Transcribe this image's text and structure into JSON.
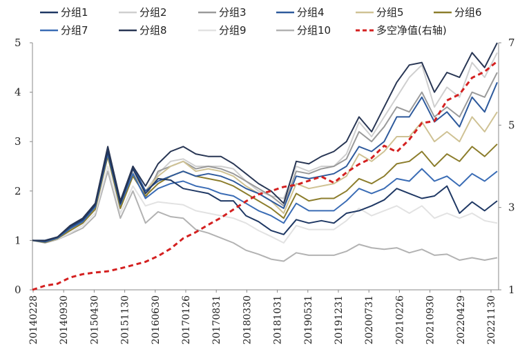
{
  "chart_data": {
    "type": "line",
    "title": "",
    "xlabel": "",
    "ylabel": "",
    "y_left_range": [
      0,
      5
    ],
    "y_left_ticks": [
      "0",
      "1",
      "2",
      "3",
      "4",
      "5"
    ],
    "y_right_range": [
      1,
      7
    ],
    "y_right_ticks": [
      "1",
      "3",
      "5",
      "7"
    ],
    "x_tick_labels": [
      "20140228",
      "20140930",
      "20150430",
      "20151130",
      "20160630",
      "20170126",
      "20170831",
      "20180330",
      "20181031",
      "20190531",
      "20191231",
      "20200731",
      "20210226",
      "20210930",
      "20220429",
      "20221130"
    ],
    "legend_position": "top",
    "colors": {
      "g1": "#1f3864",
      "g2": "#cfcfcf",
      "g3": "#9a9a9a",
      "g4": "#2e5a9c",
      "g5": "#cfc294",
      "g6": "#8c7d2c",
      "g7": "#3a6cb5",
      "g8": "#283654",
      "g9": "#e2e2e2",
      "g10": "#b2b2b2",
      "ls": "#d42020"
    },
    "series": [
      {
        "key": "g1",
        "name": "分组1",
        "axis": "left",
        "style": "solid",
        "values": [
          1.0,
          1.0,
          1.07,
          1.28,
          1.42,
          1.72,
          2.8,
          1.75,
          2.45,
          1.95,
          2.25,
          2.22,
          2.05,
          2.0,
          1.95,
          1.8,
          1.8,
          1.5,
          1.38,
          1.2,
          1.12,
          1.42,
          1.35,
          1.4,
          1.35,
          1.55,
          1.6,
          1.7,
          1.82,
          2.05,
          1.95,
          1.85,
          1.9,
          2.1,
          1.55,
          1.78,
          1.6,
          1.8
        ]
      },
      {
        "key": "g2",
        "name": "分组2",
        "axis": "left",
        "style": "solid",
        "values": [
          1.0,
          0.99,
          1.06,
          1.26,
          1.4,
          1.72,
          2.8,
          1.7,
          2.4,
          2.0,
          2.35,
          2.6,
          2.65,
          2.5,
          2.5,
          2.5,
          2.45,
          2.2,
          2.0,
          1.9,
          1.85,
          2.5,
          2.4,
          2.5,
          2.5,
          2.75,
          3.4,
          3.1,
          3.5,
          3.9,
          4.3,
          4.55,
          3.7,
          4.1,
          3.9,
          4.6,
          4.3,
          4.8
        ]
      },
      {
        "key": "g3",
        "name": "分组3",
        "axis": "left",
        "style": "solid",
        "values": [
          1.0,
          0.97,
          1.05,
          1.2,
          1.35,
          1.65,
          2.75,
          1.65,
          2.35,
          1.85,
          2.4,
          2.5,
          2.6,
          2.45,
          2.5,
          2.45,
          2.35,
          2.2,
          2.05,
          1.9,
          1.7,
          2.4,
          2.35,
          2.45,
          2.5,
          2.65,
          3.2,
          3.0,
          3.3,
          3.7,
          3.6,
          4.0,
          3.5,
          3.7,
          3.5,
          4.0,
          3.9,
          4.4
        ]
      },
      {
        "key": "g4",
        "name": "分组4",
        "axis": "left",
        "style": "solid",
        "values": [
          1.0,
          0.98,
          1.06,
          1.25,
          1.4,
          1.7,
          2.85,
          1.75,
          2.5,
          2.0,
          2.2,
          2.3,
          2.4,
          2.3,
          2.35,
          2.3,
          2.2,
          2.05,
          1.95,
          1.8,
          1.65,
          2.3,
          2.25,
          2.3,
          2.35,
          2.5,
          2.9,
          2.8,
          3.0,
          3.5,
          3.5,
          3.9,
          3.4,
          3.6,
          3.3,
          3.9,
          3.6,
          4.2
        ]
      },
      {
        "key": "g5",
        "name": "分组5",
        "axis": "left",
        "style": "solid",
        "values": [
          1.0,
          0.97,
          1.04,
          1.22,
          1.38,
          1.66,
          2.75,
          1.7,
          2.35,
          2.0,
          2.3,
          2.5,
          2.6,
          2.4,
          2.45,
          2.4,
          2.3,
          2.1,
          1.95,
          1.8,
          1.55,
          2.15,
          2.05,
          2.1,
          2.15,
          2.3,
          2.75,
          2.6,
          2.8,
          3.1,
          3.1,
          3.4,
          3.0,
          3.2,
          3.0,
          3.5,
          3.2,
          3.6
        ]
      },
      {
        "key": "g6",
        "name": "分组6",
        "axis": "left",
        "style": "solid",
        "values": [
          1.0,
          0.96,
          1.04,
          1.2,
          1.35,
          1.63,
          2.7,
          1.65,
          2.3,
          1.9,
          2.15,
          2.3,
          2.4,
          2.3,
          2.25,
          2.2,
          2.1,
          1.95,
          1.8,
          1.65,
          1.45,
          1.95,
          1.8,
          1.85,
          1.85,
          2.0,
          2.25,
          2.15,
          2.3,
          2.55,
          2.6,
          2.8,
          2.5,
          2.75,
          2.6,
          2.9,
          2.7,
          2.95
        ]
      },
      {
        "key": "g7",
        "name": "分组7",
        "axis": "left",
        "style": "solid",
        "values": [
          1.0,
          0.97,
          1.05,
          1.24,
          1.38,
          1.68,
          2.75,
          1.72,
          2.35,
          1.85,
          2.05,
          2.15,
          2.2,
          2.1,
          2.05,
          1.95,
          1.9,
          1.75,
          1.6,
          1.5,
          1.35,
          1.75,
          1.6,
          1.6,
          1.6,
          1.8,
          2.05,
          1.95,
          2.05,
          2.25,
          2.2,
          2.45,
          2.2,
          2.3,
          2.1,
          2.35,
          2.2,
          2.4
        ]
      },
      {
        "key": "g8",
        "name": "分组8",
        "axis": "left",
        "style": "solid",
        "values": [
          1.0,
          0.99,
          1.07,
          1.3,
          1.45,
          1.75,
          2.9,
          1.8,
          2.5,
          2.1,
          2.55,
          2.8,
          2.9,
          2.75,
          2.7,
          2.7,
          2.55,
          2.35,
          2.15,
          2.0,
          1.75,
          2.6,
          2.55,
          2.7,
          2.8,
          3.0,
          3.5,
          3.2,
          3.7,
          4.2,
          4.55,
          4.6,
          4.0,
          4.4,
          4.3,
          4.8,
          4.5,
          5.0
        ]
      },
      {
        "key": "g9",
        "name": "分组9",
        "axis": "left",
        "style": "solid",
        "values": [
          1.0,
          0.97,
          1.03,
          1.15,
          1.3,
          1.56,
          2.5,
          1.55,
          2.1,
          1.7,
          1.78,
          1.75,
          1.72,
          1.6,
          1.55,
          1.5,
          1.45,
          1.35,
          1.2,
          1.08,
          0.95,
          1.3,
          1.22,
          1.22,
          1.22,
          1.4,
          1.65,
          1.5,
          1.6,
          1.7,
          1.55,
          1.7,
          1.45,
          1.55,
          1.45,
          1.55,
          1.4,
          1.35
        ]
      },
      {
        "key": "g10",
        "name": "分组10",
        "axis": "left",
        "style": "solid",
        "values": [
          1.0,
          0.95,
          1.02,
          1.13,
          1.25,
          1.5,
          2.4,
          1.45,
          2.0,
          1.35,
          1.58,
          1.48,
          1.45,
          1.22,
          1.15,
          1.05,
          0.95,
          0.8,
          0.72,
          0.62,
          0.58,
          0.75,
          0.7,
          0.7,
          0.7,
          0.78,
          0.92,
          0.85,
          0.82,
          0.85,
          0.75,
          0.82,
          0.7,
          0.72,
          0.6,
          0.65,
          0.6,
          0.65
        ]
      },
      {
        "key": "ls",
        "name": "多空净值(右轴)",
        "axis": "right",
        "style": "dashed",
        "values": [
          1.0,
          1.1,
          1.15,
          1.3,
          1.38,
          1.42,
          1.45,
          1.52,
          1.6,
          1.68,
          1.82,
          2.0,
          2.25,
          2.4,
          2.58,
          2.75,
          2.95,
          3.15,
          3.32,
          3.4,
          3.5,
          3.55,
          3.65,
          3.75,
          3.6,
          3.85,
          4.05,
          4.2,
          4.5,
          4.35,
          4.65,
          5.05,
          5.1,
          5.6,
          5.75,
          6.15,
          6.3,
          6.55
        ]
      }
    ]
  }
}
